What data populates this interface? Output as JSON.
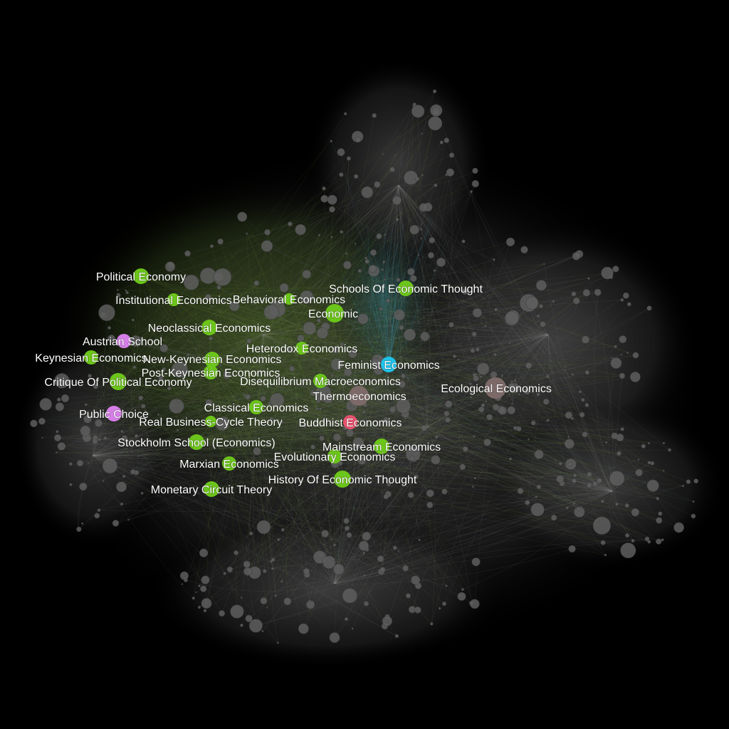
{
  "graph": {
    "background": "#000000",
    "colors": {
      "green": "#6cc51a",
      "violet": "#d67ee8",
      "cyan": "#1ec3ea",
      "pink": "#e8526e",
      "taupe": "#7d6a68",
      "gray": "#5e5e5e",
      "edge_gray": "#8a8a8a",
      "edge_green": "#7da83a",
      "edge_cyan": "#3fa9c4"
    },
    "labeled_nodes": [
      {
        "id": "political-economy",
        "label": "Political Economy",
        "color": "green"
      },
      {
        "id": "institutional-economics",
        "label": "Institutional Economics",
        "color": "green"
      },
      {
        "id": "behavioral-economics",
        "label": "Behavioral Economics",
        "color": "green"
      },
      {
        "id": "schools-of-economic-thought",
        "label": "Schools Of Economic Thought",
        "color": "green"
      },
      {
        "id": "economic",
        "label": "Economic",
        "color": "green"
      },
      {
        "id": "neoclassical-economics",
        "label": "Neoclassical Economics",
        "color": "green"
      },
      {
        "id": "austrian-school",
        "label": "Austrian School",
        "color": "violet"
      },
      {
        "id": "heterodox-economics",
        "label": "Heterodox Economics",
        "color": "green"
      },
      {
        "id": "keynesian-economics",
        "label": "Keynesian Economics",
        "color": "green"
      },
      {
        "id": "new-keynesian-economics",
        "label": "New-Keynesian Economics",
        "color": "green"
      },
      {
        "id": "feminist-economics",
        "label": "Feminist Economics",
        "color": "cyan"
      },
      {
        "id": "post-keynesian-economics",
        "label": "Post-Keynesian Economics",
        "color": "green"
      },
      {
        "id": "critique-of-political-economy",
        "label": "Critique Of Political Economy",
        "color": "green"
      },
      {
        "id": "disequilibrium-macroeconomics",
        "label": "Disequilibrium Macroeconomics",
        "color": "green"
      },
      {
        "id": "ecological-economics",
        "label": "Ecological Economics",
        "color": "taupe"
      },
      {
        "id": "thermoeconomics",
        "label": "Thermoeconomics",
        "color": "taupe"
      },
      {
        "id": "classical-economics",
        "label": "Classical Economics",
        "color": "green"
      },
      {
        "id": "public-choice",
        "label": "Public Choice",
        "color": "violet"
      },
      {
        "id": "real-business-cycle-theory",
        "label": "Real Business-Cycle Theory",
        "color": "green"
      },
      {
        "id": "buddhist-economics",
        "label": "Buddhist Economics",
        "color": "pink"
      },
      {
        "id": "stockholm-school",
        "label": "Stockholm School (Economics)",
        "color": "green"
      },
      {
        "id": "mainstream-economics",
        "label": "Mainstream Economics",
        "color": "green"
      },
      {
        "id": "evolutionary-economics",
        "label": "Evolutionary Economics",
        "color": "green"
      },
      {
        "id": "marxian-economics",
        "label": "Marxian Economics",
        "color": "green"
      },
      {
        "id": "history-of-economic-thought",
        "label": "History Of Economic Thought",
        "color": "green"
      },
      {
        "id": "monetary-circuit-theory",
        "label": "Monetary Circuit Theory",
        "color": "green"
      }
    ]
  }
}
